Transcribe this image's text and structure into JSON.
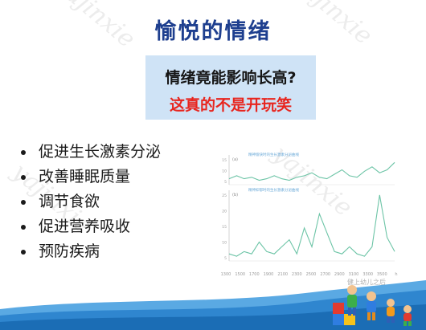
{
  "slide": {
    "title": "愉悦的情绪",
    "callout": {
      "question": "情绪竟能影响长高?",
      "answer": "这真的不是开玩笑"
    },
    "bullets": [
      "促进生长激素分泌",
      "改善睡眠质量",
      "调节食欲",
      "促进营养吸收",
      "预防疾病"
    ],
    "watermark": "yajinxie",
    "credit": "健上幼儿之后",
    "colors": {
      "title": "#1e3f8f",
      "callout_bg": "#cfe3f6",
      "answer": "#e8251e",
      "chart_line": "#6cc4a6"
    }
  },
  "chart_data": {
    "type": "line",
    "xlabel": "",
    "ylabel": "",
    "x_ticks": [
      "1300",
      "1500",
      "1700",
      "1900",
      "2100",
      "2300",
      "2500",
      "2700",
      "2900",
      "3100",
      "3300",
      "3500",
      "h"
    ],
    "panels": [
      {
        "tag": "(a)",
        "legend": "精神愉快时的生长激素分泌曲线",
        "y_ticks": [
          "15",
          "10",
          "5"
        ],
        "ylim": [
          0,
          20
        ],
        "x": [
          1300,
          1400,
          1500,
          1600,
          1700,
          1800,
          1900,
          2000,
          2100,
          2200,
          2300,
          2400,
          2500,
          2600,
          2700,
          2800,
          2900,
          3000,
          3100,
          3200,
          3300,
          3400,
          3500
        ],
        "y": [
          4,
          6,
          4,
          5,
          3,
          4,
          6,
          4,
          3,
          5,
          6,
          8,
          5,
          4,
          7,
          10,
          6,
          5,
          9,
          12,
          8,
          10,
          15
        ]
      },
      {
        "tag": "(b)",
        "legend": "精神抑郁时的生长激素分泌曲线",
        "y_ticks": [
          "25",
          "20",
          "15",
          "10",
          "5"
        ],
        "ylim": [
          0,
          30
        ],
        "x": [
          1300,
          1400,
          1500,
          1600,
          1700,
          1800,
          1900,
          2000,
          2100,
          2200,
          2300,
          2400,
          2500,
          2600,
          2700,
          2800,
          2900,
          3000,
          3100,
          3200,
          3300,
          3400,
          3500
        ],
        "y": [
          3,
          2,
          4,
          3,
          8,
          4,
          3,
          6,
          9,
          3,
          14,
          6,
          20,
          12,
          4,
          3,
          6,
          3,
          2,
          6,
          28,
          10,
          4
        ]
      }
    ]
  }
}
